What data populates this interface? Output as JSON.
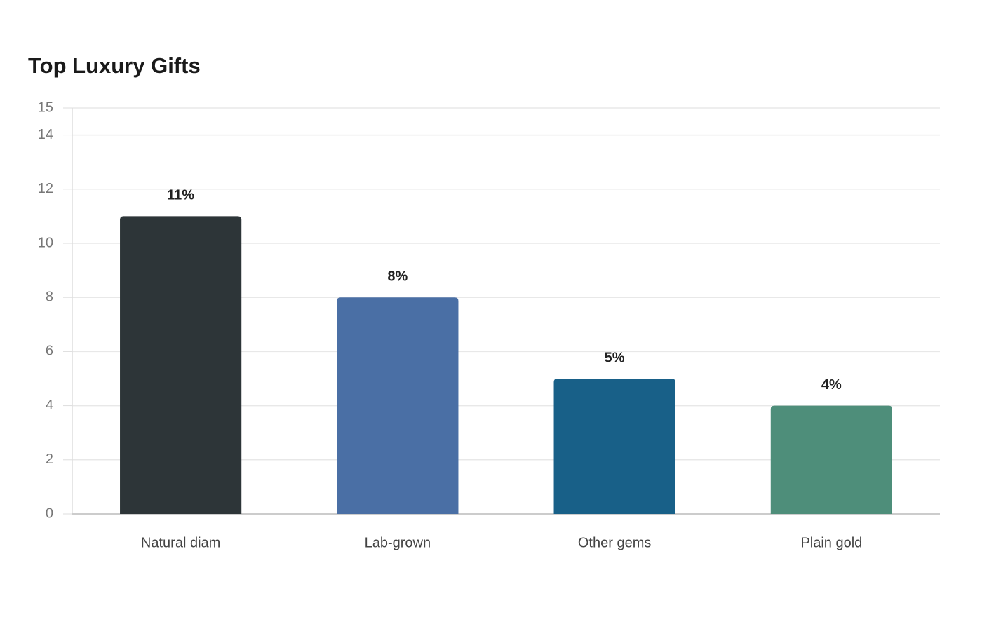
{
  "chart_data": {
    "type": "bar",
    "title": "Top Luxury Gifts",
    "categories": [
      "Natural diam",
      "Lab-grown",
      "Other gems",
      "Plain gold"
    ],
    "values": [
      11,
      8,
      5,
      4
    ],
    "value_labels": [
      "11%",
      "8%",
      "5%",
      "4%"
    ],
    "colors": [
      "#2d3538",
      "#4a6fa5",
      "#186088",
      "#4e8e7a"
    ],
    "ylim": [
      0,
      15
    ],
    "yticks": [
      0,
      2,
      4,
      6,
      8,
      10,
      12,
      14,
      15
    ],
    "grid": true
  }
}
